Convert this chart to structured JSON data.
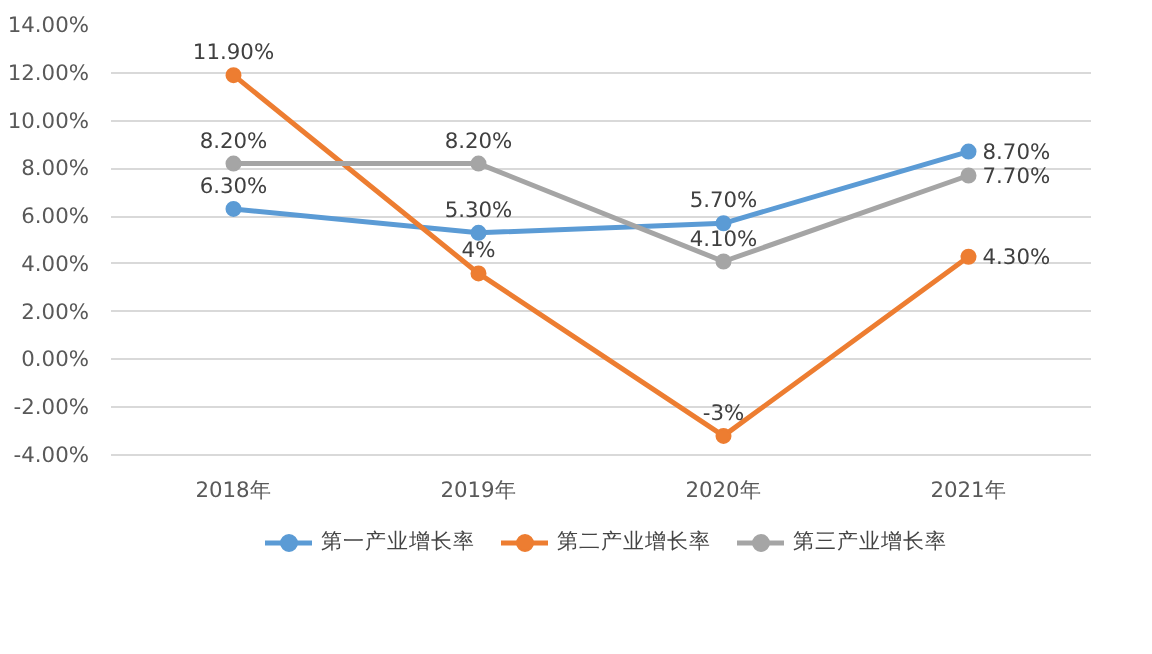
{
  "chart_data": {
    "type": "line",
    "categories": [
      "2018年",
      "2019年",
      "2020年",
      "2021年"
    ],
    "series": [
      {
        "name": "第一产业增长率",
        "color": "#5b9bd5",
        "values": [
          6.3,
          5.3,
          5.7,
          8.7
        ],
        "value_labels": [
          "6.30%",
          "5.30%",
          "5.70%",
          "8.70%"
        ]
      },
      {
        "name": "第二产业增长率",
        "color": "#ed7d31",
        "values": [
          11.9,
          3.6,
          -3.2,
          4.3
        ],
        "value_labels": [
          "11.90%",
          "4%",
          "-3%",
          "4.30%"
        ]
      },
      {
        "name": "第三产业增长率",
        "color": "#a5a5a5",
        "values": [
          8.2,
          8.2,
          4.1,
          7.7
        ],
        "value_labels": [
          "8.20%",
          "8.20%",
          "4.10%",
          "7.70%"
        ]
      }
    ],
    "ylim": [
      -4,
      14
    ],
    "yticks": [
      {
        "value": -4,
        "label": "-4.00%"
      },
      {
        "value": -2,
        "label": "-2.00%"
      },
      {
        "value": 0,
        "label": "0.00%"
      },
      {
        "value": 2,
        "label": "2.00%"
      },
      {
        "value": 4,
        "label": "4.00%"
      },
      {
        "value": 6,
        "label": "6.00%"
      },
      {
        "value": 8,
        "label": "8.00%"
      },
      {
        "value": 10,
        "label": "10.00%"
      },
      {
        "value": 12,
        "label": "12.00%"
      },
      {
        "value": 14,
        "label": "14.00%"
      }
    ],
    "grid": "y",
    "legend": "bottom",
    "marker": "circle",
    "line_style": "solid"
  }
}
